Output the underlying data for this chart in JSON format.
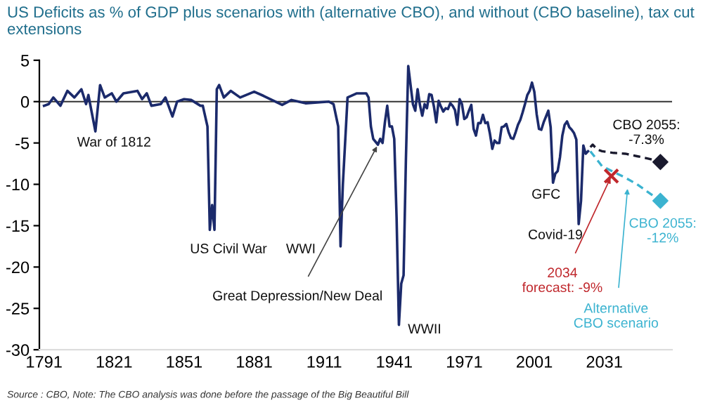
{
  "chart_data": {
    "type": "line",
    "title": "US Deficits as % of GDP plus scenarios with (alternative CBO), and without (CBO baseline), tax cut extensions",
    "series": [
      {
        "color": "#1b2a6b",
        "line_style": "solid",
        "marker": "none",
        "x": [
          1791,
          1793,
          1795,
          1798,
          1801,
          1804,
          1807,
          1809,
          1810,
          1813,
          1815,
          1817,
          1820,
          1822,
          1825,
          1831,
          1833,
          1835,
          1837,
          1841,
          1843,
          1846,
          1848,
          1851,
          1854,
          1858,
          1859,
          1861,
          1862,
          1863,
          1864,
          1865,
          1866,
          1868,
          1871,
          1875,
          1881,
          1885,
          1893,
          1897,
          1903,
          1913,
          1915,
          1917,
          1918,
          1919,
          1921,
          1925,
          1929,
          1930,
          1931,
          1932,
          1934,
          1935,
          1936,
          1937,
          1938,
          1939,
          1940,
          1941,
          1942,
          1943,
          1944,
          1945,
          1946,
          1947,
          1948,
          1949,
          1950,
          1951,
          1952,
          1953,
          1954,
          1955,
          1956,
          1957,
          1958,
          1959,
          1960,
          1961,
          1962,
          1963,
          1964,
          1965,
          1966,
          1967,
          1968,
          1969,
          1970,
          1971,
          1972,
          1973,
          1974,
          1975,
          1976,
          1977,
          1978,
          1979,
          1980,
          1981,
          1982,
          1983,
          1984,
          1985,
          1986,
          1987,
          1988,
          1989,
          1990,
          1991,
          1992,
          1993,
          1994,
          1995,
          1996,
          1997,
          1998,
          1999,
          2000,
          2001,
          2002,
          2003,
          2004,
          2005,
          2006,
          2007,
          2008,
          2009,
          2010,
          2011,
          2012,
          2013,
          2014,
          2015,
          2016,
          2017,
          2018,
          2019,
          2020,
          2021,
          2022,
          2023,
          2024
        ],
        "values": [
          -0.5,
          -0.3,
          0.5,
          -0.5,
          1.3,
          0.5,
          1.5,
          -0.3,
          0.8,
          -3.6,
          2.0,
          0.5,
          1.0,
          0,
          1.0,
          1.3,
          0.3,
          1.0,
          -0.5,
          -0.3,
          0.5,
          -1.8,
          0,
          0.3,
          0.2,
          -0.5,
          -0.5,
          -3,
          -15.5,
          -12.5,
          -15.5,
          1.5,
          2.0,
          0.5,
          1.3,
          0.5,
          1.2,
          0.7,
          -0.4,
          0.2,
          -0.2,
          0,
          -0.3,
          -3,
          -17.5,
          -10,
          0.5,
          1.0,
          1.0,
          0.5,
          -3,
          -4.5,
          -5.2,
          -4.5,
          -5.0,
          -2.5,
          -0.5,
          -3.0,
          -3.0,
          -4.5,
          -14,
          -27,
          -22,
          -21,
          -7,
          4.3,
          2.0,
          -0.3,
          -1.1,
          1.5,
          -0.4,
          -1.7,
          -0.3,
          -0.8,
          0.9,
          0.8,
          -0.6,
          -2.5,
          0.1,
          -0.6,
          -1.2,
          -0.8,
          -0.9,
          -0.2,
          -0.5,
          -1.0,
          -2.8,
          0.3,
          -0.3,
          -2.1,
          -1.9,
          -1.1,
          -0.4,
          -3.3,
          -4.1,
          -2.6,
          -2.6,
          -1.6,
          -2.6,
          -2.5,
          -3.9,
          -5.7,
          -4.7,
          -5.0,
          -5.0,
          -3.1,
          -3.0,
          -2.7,
          -3.7,
          -4.4,
          -4.5,
          -3.7,
          -2.8,
          -2.2,
          -1.3,
          -0.3,
          0.8,
          1.3,
          2.3,
          1.2,
          -1.5,
          -3.3,
          -3.4,
          -2.5,
          -1.8,
          -1.1,
          -3.1,
          -9.8,
          -8.7,
          -8.4,
          -6.7,
          -4.1,
          -2.8,
          -2.4,
          -3.1,
          -3.4,
          -3.8,
          -4.6,
          -14.8,
          -12,
          -5.3,
          -6.3,
          -6.0
        ]
      },
      {
        "type": "line",
        "color": "#1a1a2e",
        "line_style": "dashed",
        "marker": "none",
        "x": [
          2025,
          2026,
          2028,
          2030,
          2035,
          2040,
          2045,
          2050,
          2055
        ],
        "values": [
          -5.5,
          -5.2,
          -5.8,
          -6.0,
          -6.2,
          -6.3,
          -6.6,
          -6.9,
          -7.3
        ]
      },
      {
        "type": "scatter",
        "color": "#1a1a2e",
        "marker": "diamond",
        "x": [
          2055
        ],
        "values": [
          -7.3
        ]
      },
      {
        "type": "line",
        "color": "#3bb3d0",
        "line_style": "dashed",
        "marker": "none",
        "x": [
          2025,
          2030,
          2035,
          2040,
          2045,
          2050,
          2055
        ],
        "values": [
          -6.0,
          -7.8,
          -8.5,
          -9.2,
          -10.0,
          -11.0,
          -12.0
        ]
      },
      {
        "type": "scatter",
        "color": "#3bb3d0",
        "marker": "diamond",
        "x": [
          2055
        ],
        "values": [
          -12.0
        ]
      },
      {
        "type": "scatter",
        "color": "#c0282d",
        "marker": "cross",
        "x": [
          2034
        ],
        "values": [
          -9
        ]
      }
    ],
    "xlim": [
      1789,
      2060
    ],
    "xticks": [
      1791,
      1821,
      1851,
      1881,
      1911,
      1941,
      1971,
      2001,
      2031
    ],
    "ylim": [
      -30,
      5
    ],
    "yticks": [
      5,
      0,
      -5,
      -10,
      -15,
      -20,
      -25,
      -30
    ],
    "ref_lines": [
      {
        "axis": "y",
        "value": 0,
        "color": "#333333",
        "line_style": "solid"
      }
    ],
    "grid": false,
    "legend": false,
    "annotations": [
      {
        "text": "War of 1812",
        "x": 1813,
        "y": -3.6
      },
      {
        "text": "US Civil War",
        "x": 1862,
        "y": -15.5
      },
      {
        "text": "WWI",
        "x": 1918,
        "y": -17.5
      },
      {
        "text": "Great Depression/New Deal",
        "x": 1934,
        "y": -5.2
      },
      {
        "text": "WWII",
        "x": 1943,
        "y": -27
      },
      {
        "text": "GFC",
        "x": 2009,
        "y": -9.8
      },
      {
        "text": "Covid-19",
        "x": 2020,
        "y": -14.8
      },
      {
        "text": "CBO 2055:\n-7.3%",
        "x": 2055,
        "y": -7.3
      },
      {
        "text": "CBO 2055:\n-12%",
        "x": 2055,
        "y": -12
      },
      {
        "text": "2034\nforecast: -9%",
        "x": 2034,
        "y": -9
      },
      {
        "text": "Alternative\nCBO scenario",
        "x": 2041,
        "y": -10.3
      },
      "Source : CBO, Note: The CBO analysis was done before the passage of the Big Beautiful Bill"
    ]
  }
}
